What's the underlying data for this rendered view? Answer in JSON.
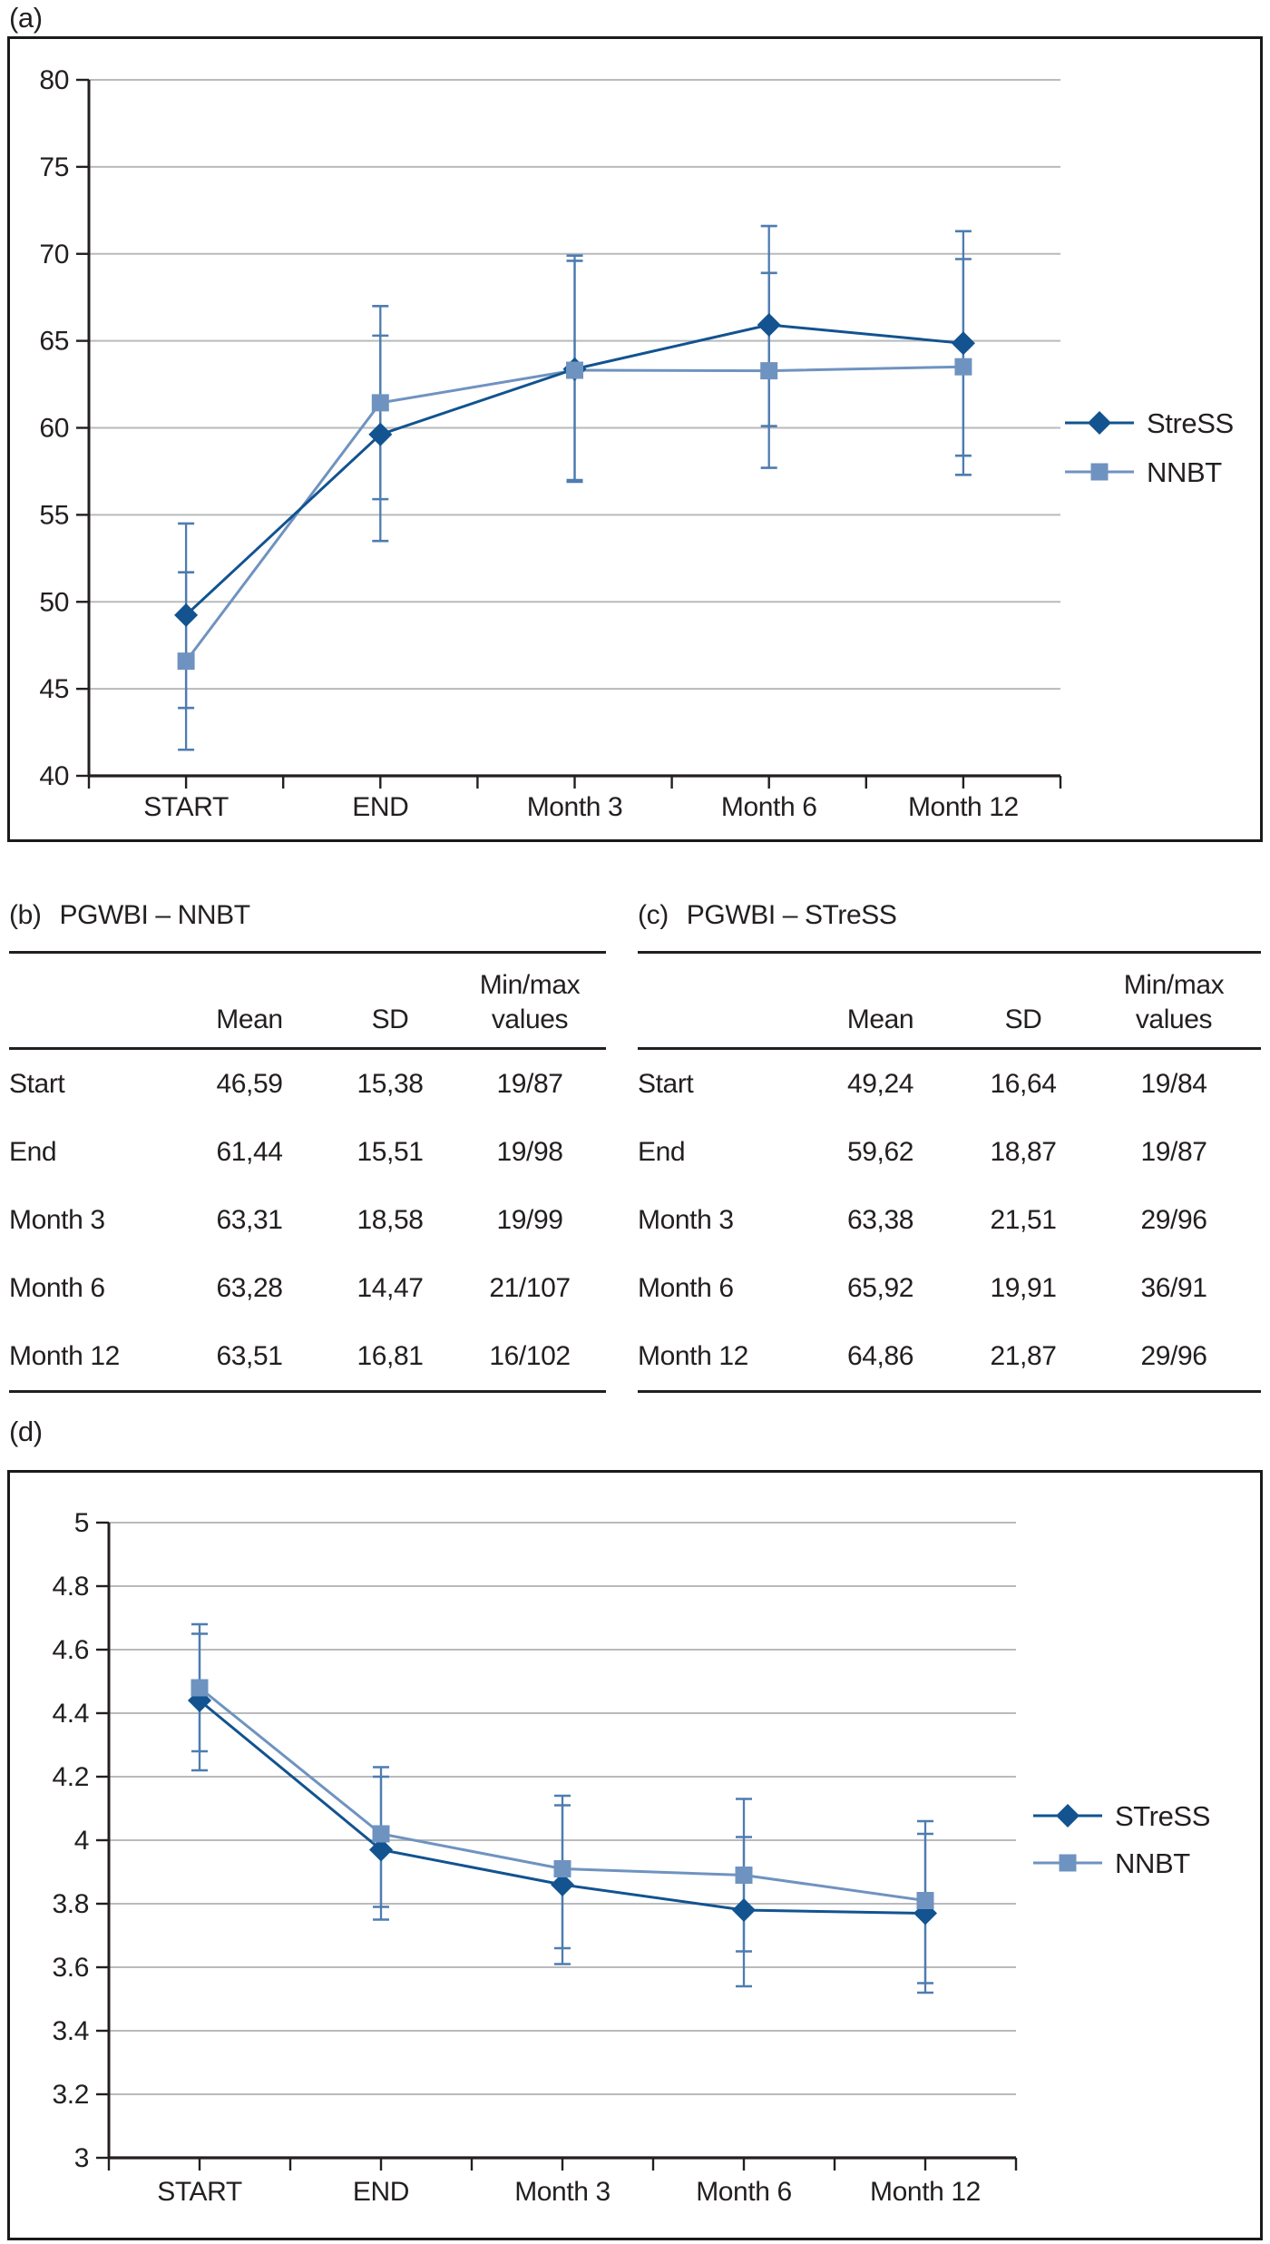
{
  "figure": {
    "panel_labels": {
      "a": "(a)",
      "b": "(b)",
      "c": "(c)",
      "d": "(d)"
    },
    "colors": {
      "stress_series": "#125390",
      "nnbt_series": "#6F93C0",
      "error_bar": "#4E7CB0",
      "gridline": "#b9babc",
      "axis": "#231f20",
      "text": "#231f20",
      "frame": "#1a1a1a",
      "background": "#ffffff"
    }
  },
  "chart_data": [
    {
      "panel": "a",
      "type": "line",
      "categories": [
        "START",
        "END",
        "Month 3",
        "Month 6",
        "Month 12"
      ],
      "ylim": [
        40,
        80
      ],
      "yticks": [
        "40",
        "45",
        "50",
        "55",
        "60",
        "65",
        "70",
        "75",
        "80"
      ],
      "grid": true,
      "legend_position": "right",
      "series": [
        {
          "name": "StreSS",
          "marker": "diamond",
          "color_key": "stress_series",
          "values": [
            49.24,
            59.62,
            63.38,
            65.92,
            64.86
          ],
          "err_low": [
            43.9,
            53.5,
            56.9,
            60.1,
            58.4
          ],
          "err_high": [
            54.5,
            65.3,
            69.9,
            71.6,
            71.3
          ]
        },
        {
          "name": "NNBT",
          "marker": "square",
          "color_key": "nnbt_series",
          "values": [
            46.59,
            61.44,
            63.31,
            63.28,
            63.51
          ],
          "err_low": [
            41.5,
            55.9,
            57.0,
            57.7,
            57.3
          ],
          "err_high": [
            51.7,
            67.0,
            69.6,
            68.9,
            69.7
          ]
        }
      ]
    },
    {
      "panel": "d",
      "type": "line",
      "categories": [
        "START",
        "END",
        "Month 3",
        "Month 6",
        "Month 12"
      ],
      "ylim": [
        3,
        5
      ],
      "yticks": [
        "3",
        "3.2",
        "3.4",
        "3.6",
        "3.8",
        "4",
        "4.2",
        "4.4",
        "4.6",
        "4.8",
        "5"
      ],
      "grid": true,
      "legend_position": "right",
      "series": [
        {
          "name": "STreSS",
          "marker": "diamond",
          "color_key": "stress_series",
          "values": [
            4.44,
            3.97,
            3.86,
            3.78,
            3.77
          ],
          "err_low": [
            4.22,
            3.75,
            3.61,
            3.54,
            3.52
          ],
          "err_high": [
            4.65,
            4.2,
            4.11,
            4.01,
            4.02
          ]
        },
        {
          "name": "NNBT",
          "marker": "square",
          "color_key": "nnbt_series",
          "values": [
            4.48,
            4.02,
            3.91,
            3.89,
            3.81
          ],
          "err_low": [
            4.28,
            3.79,
            3.66,
            3.65,
            3.55
          ],
          "err_high": [
            4.68,
            4.23,
            4.14,
            4.13,
            4.06
          ]
        }
      ]
    }
  ],
  "tables": [
    {
      "panel": "b",
      "title": "PGWBI – NNBT",
      "columns": [
        "",
        "Mean",
        "SD",
        [
          "Min/max",
          "values"
        ]
      ],
      "rows": [
        [
          "Start",
          "46,59",
          "15,38",
          "19/87"
        ],
        [
          "End",
          "61,44",
          "15,51",
          "19/98"
        ],
        [
          "Month 3",
          "63,31",
          "18,58",
          "19/99"
        ],
        [
          "Month 6",
          "63,28",
          "14,47",
          "21/107"
        ],
        [
          "Month 12",
          "63,51",
          "16,81",
          "16/102"
        ]
      ]
    },
    {
      "panel": "c",
      "title": "PGWBI – STreSS",
      "columns": [
        "",
        "Mean",
        "SD",
        [
          "Min/max",
          "values"
        ]
      ],
      "rows": [
        [
          "Start",
          "49,24",
          "16,64",
          "19/84"
        ],
        [
          "End",
          "59,62",
          "18,87",
          "19/87"
        ],
        [
          "Month 3",
          "63,38",
          "21,51",
          "29/96"
        ],
        [
          "Month 6",
          "65,92",
          "19,91",
          "36/91"
        ],
        [
          "Month 12",
          "64,86",
          "21,87",
          "29/96"
        ]
      ]
    }
  ]
}
